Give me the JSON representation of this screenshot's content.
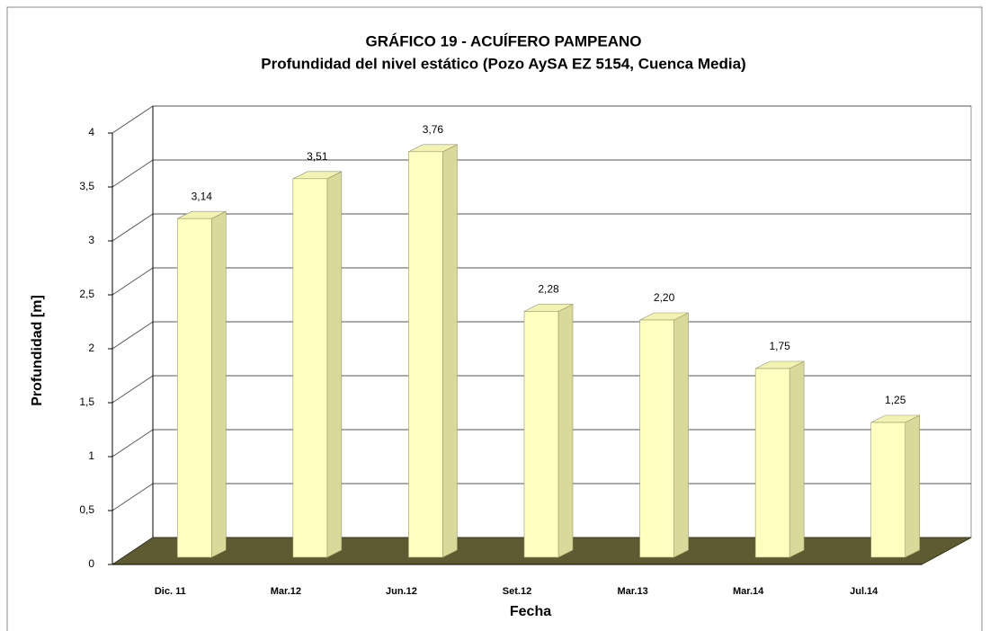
{
  "chart_data": {
    "type": "bar",
    "title": "GRÁFICO 19 - ACUÍFERO PAMPEANO",
    "subtitle": "Profundidad del nivel estático (Pozo AySA EZ 5154, Cuenca Media)",
    "x_label": "Fecha",
    "y_label": "Profundidad [m]",
    "categories": [
      "Dic. 11",
      "Mar.12",
      "Jun.12",
      "Set.12",
      "Mar.13",
      "Mar.14",
      "Jul.14"
    ],
    "values": [
      3.14,
      3.51,
      3.76,
      2.28,
      2.2,
      1.75,
      1.25
    ],
    "value_labels": [
      "3,14",
      "3,51",
      "3,76",
      "2,28",
      "2,20",
      "1,75",
      "1,25"
    ],
    "color": "#ffffc0",
    "ylim": [
      0,
      4
    ],
    "yticks": [
      0,
      {
        "value": 0.5,
        "label": "0,5"
      },
      1,
      {
        "value": 1.5,
        "label": "1,5"
      },
      2,
      {
        "value": 2.5,
        "label": "2,5"
      },
      3,
      {
        "value": 3.5,
        "label": "3,5"
      },
      4
    ],
    "grid": true
  }
}
